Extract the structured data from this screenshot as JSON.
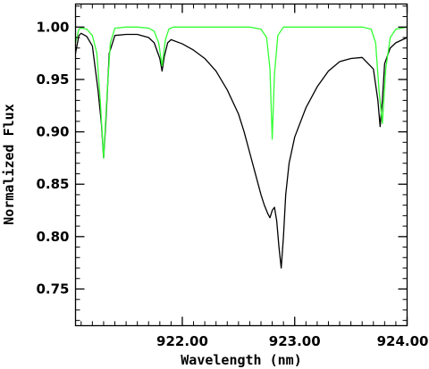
{
  "chart_data": {
    "type": "line",
    "xlabel": "Wavelength (nm)",
    "ylabel": "Normalized Flux",
    "xlim": [
      921.05,
      924.0
    ],
    "ylim": [
      0.715,
      1.022
    ],
    "x_major_ticks": [
      922.0,
      923.0,
      924.0
    ],
    "x_tick_labels": [
      "922.00",
      "923.00",
      "924.00"
    ],
    "x_minor_step": 0.1,
    "y_major_ticks": [
      0.75,
      0.8,
      0.85,
      0.9,
      0.95,
      1.0
    ],
    "y_tick_labels": [
      "0.75",
      "0.80",
      "0.85",
      "0.90",
      "0.95",
      "1.00"
    ],
    "y_minor_step": 0.01,
    "grid": false,
    "series": [
      {
        "color": "#000000",
        "x": [
          921.05,
          921.08,
          921.1,
          921.15,
          921.2,
          921.25,
          921.28,
          921.3,
          921.32,
          921.35,
          921.4,
          921.5,
          921.6,
          921.7,
          921.75,
          921.8,
          921.82,
          921.84,
          921.87,
          921.9,
          922.0,
          922.1,
          922.2,
          922.3,
          922.4,
          922.5,
          922.55,
          922.6,
          922.65,
          922.7,
          922.73,
          922.76,
          922.78,
          922.8,
          922.82,
          922.84,
          922.86,
          922.88,
          922.9,
          922.92,
          922.95,
          923.0,
          923.1,
          923.2,
          923.3,
          923.4,
          923.5,
          923.6,
          923.7,
          923.74,
          923.76,
          923.78,
          923.8,
          923.85,
          923.9,
          924.0
        ],
        "y": [
          0.975,
          0.992,
          0.994,
          0.991,
          0.982,
          0.94,
          0.908,
          0.875,
          0.91,
          0.975,
          0.992,
          0.993,
          0.993,
          0.99,
          0.985,
          0.97,
          0.958,
          0.972,
          0.985,
          0.988,
          0.984,
          0.978,
          0.97,
          0.958,
          0.94,
          0.917,
          0.9,
          0.88,
          0.86,
          0.84,
          0.83,
          0.822,
          0.818,
          0.825,
          0.828,
          0.815,
          0.79,
          0.77,
          0.8,
          0.84,
          0.87,
          0.895,
          0.923,
          0.943,
          0.958,
          0.967,
          0.97,
          0.971,
          0.96,
          0.93,
          0.905,
          0.93,
          0.965,
          0.98,
          0.985,
          0.99
        ]
      },
      {
        "color": "#33ff33",
        "x": [
          921.05,
          921.08,
          921.1,
          921.15,
          921.2,
          921.24,
          921.27,
          921.3,
          921.33,
          921.36,
          921.4,
          921.5,
          921.6,
          921.7,
          921.75,
          921.79,
          921.82,
          921.85,
          921.88,
          921.92,
          922.0,
          922.2,
          922.4,
          922.6,
          922.7,
          922.75,
          922.78,
          922.8,
          922.82,
          922.85,
          922.9,
          923.0,
          923.2,
          923.4,
          923.6,
          923.68,
          923.72,
          923.75,
          923.78,
          923.81,
          923.85,
          923.9,
          924.0
        ],
        "y": [
          0.985,
          0.998,
          0.999,
          0.998,
          0.992,
          0.975,
          0.93,
          0.875,
          0.935,
          0.985,
          0.999,
          1.0,
          1.0,
          0.999,
          0.996,
          0.985,
          0.963,
          0.988,
          0.998,
          1.0,
          1.0,
          1.0,
          1.0,
          1.0,
          0.998,
          0.99,
          0.96,
          0.893,
          0.955,
          0.992,
          1.0,
          1.0,
          1.0,
          1.0,
          1.0,
          0.998,
          0.985,
          0.94,
          0.908,
          0.96,
          0.99,
          0.998,
          1.0
        ]
      }
    ]
  }
}
